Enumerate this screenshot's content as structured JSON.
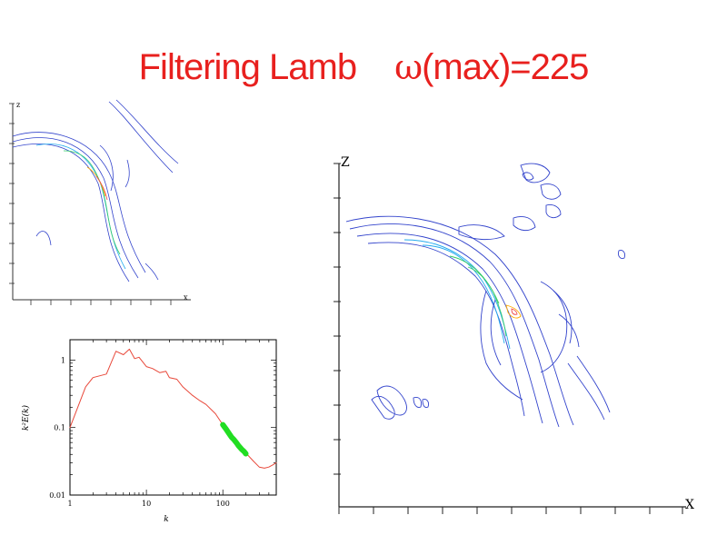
{
  "slide": {
    "title_text": "Filtering Lamb",
    "title_omega": "ω",
    "title_rest": "(max)=225",
    "title_color": "#e8201e"
  },
  "contour_small": {
    "z_label": "z",
    "x_label": "x"
  },
  "contour_large": {
    "z_label": "Z",
    "x_label": "X"
  },
  "chart_data": {
    "type": "line",
    "title": "",
    "xlabel": "k",
    "ylabel": "k²E(k)",
    "xscale": "log",
    "yscale": "log",
    "xlim": [
      1,
      500
    ],
    "ylim": [
      0.01,
      2
    ],
    "x_tick_labels": [
      "1",
      "10",
      "100"
    ],
    "x_ticks": [
      1,
      10,
      100
    ],
    "y_tick_labels": [
      "0.01",
      "0.1",
      "1"
    ],
    "y_ticks": [
      0.01,
      0.1,
      1
    ],
    "grid": false,
    "colors": {
      "spectrum": "#e8483a",
      "filtered": "#22dd22"
    },
    "series": [
      {
        "x": [
          1,
          1.6,
          2,
          3,
          4,
          5,
          6,
          7,
          8,
          10,
          12,
          15,
          18,
          20,
          25,
          30,
          40,
          50,
          60,
          80,
          100,
          130,
          160,
          200,
          250,
          300,
          350,
          400,
          450,
          500
        ],
        "y": [
          0.1,
          0.4,
          0.55,
          0.62,
          1.35,
          1.2,
          1.45,
          1.05,
          1.1,
          0.8,
          0.75,
          0.65,
          0.68,
          0.55,
          0.52,
          0.4,
          0.3,
          0.25,
          0.22,
          0.16,
          0.11,
          0.075,
          0.055,
          0.042,
          0.032,
          0.026,
          0.025,
          0.026,
          0.028,
          0.03
        ]
      },
      {
        "x": [
          100,
          110,
          120,
          130,
          140,
          150,
          160,
          175,
          190,
          200
        ],
        "y": [
          0.11,
          0.095,
          0.082,
          0.072,
          0.066,
          0.06,
          0.054,
          0.048,
          0.044,
          0.041
        ]
      }
    ]
  }
}
